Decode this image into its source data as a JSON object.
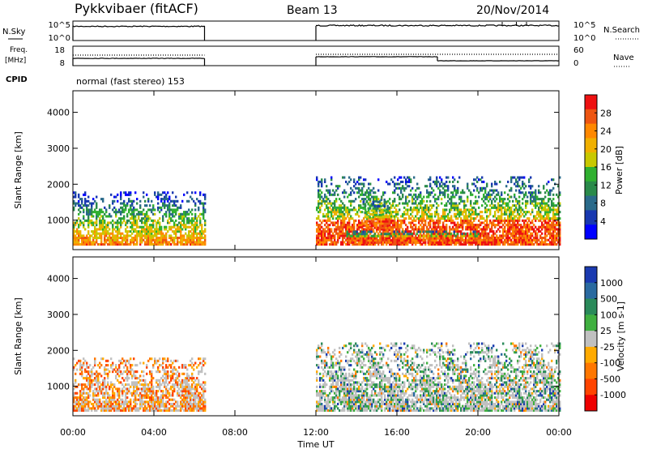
{
  "header": {
    "station": "Pykkvibaer (fitACF)",
    "beam": "Beam 13",
    "date": "20/Nov/2014",
    "mode": "normal (fast stereo) 153"
  },
  "side_labels": {
    "nsky": "N.Sky",
    "nsearch": "N.Search",
    "freq_line1": "Freq.",
    "freq_line2": "[MHz]",
    "nave": "Nave",
    "cpid": "CPID"
  },
  "noise_axis": {
    "left_ticks": [
      "10^5",
      "10^0"
    ],
    "right_ticks": [
      "10^5",
      "10^0"
    ]
  },
  "freq_axis": {
    "left_ticks": [
      "18",
      "8"
    ],
    "right_ticks": [
      "60",
      "0"
    ]
  },
  "x_axis": {
    "label": "Time UT",
    "ticks": [
      "00:00",
      "04:00",
      "08:00",
      "12:00",
      "16:00",
      "20:00",
      "00:00"
    ]
  },
  "chart_data": [
    {
      "type": "heatmap",
      "title": "",
      "xlabel": "Time UT",
      "ylabel": "Slant Range [km]",
      "x_range_hours": [
        0,
        24
      ],
      "ylim": [
        180,
        4600
      ],
      "y_ticks": [
        1000,
        2000,
        3000,
        4000
      ],
      "colorbar_label": "Power [dB]",
      "colorbar_ticks": [
        28,
        24,
        20,
        16,
        12,
        8,
        4
      ],
      "colors": [
        "#ee1111",
        "#ee5511",
        "#ff8800",
        "#f0b000",
        "#c8c800",
        "#30b030",
        "#2a8a4a",
        "#2a6a8a",
        "#1838b0",
        "#0000ff"
      ],
      "data_gaps_hours": [
        [
          6.5,
          12.0
        ]
      ],
      "echo_regions": [
        {
          "t_start": 0.0,
          "t_end": 6.5,
          "range_min": 300,
          "range_max": 1800,
          "peak_db": 22
        },
        {
          "t_start": 12.0,
          "t_end": 24.0,
          "range_min": 300,
          "range_max": 2200,
          "peak_db": 30
        },
        {
          "t_start": 14.3,
          "t_end": 15.6,
          "range_min": 700,
          "range_max": 1600,
          "peak_db": 30
        },
        {
          "t_start": 13.5,
          "t_end": 20.0,
          "range_min": 350,
          "range_max": 700,
          "peak_db": 30
        }
      ]
    },
    {
      "type": "heatmap",
      "title": "",
      "xlabel": "Time UT",
      "ylabel": "Slant Range [km]",
      "x_range_hours": [
        0,
        24
      ],
      "ylim": [
        180,
        4600
      ],
      "y_ticks": [
        1000,
        2000,
        3000,
        4000
      ],
      "colorbar_label": "Velocity [m s-1]",
      "colorbar_ticks": [
        1000,
        500,
        100,
        25,
        -25,
        -100,
        -500,
        -1000
      ],
      "colors": [
        "#1a3ab0",
        "#2a6aa0",
        "#2a8a5a",
        "#40b040",
        "#c0c0c0",
        "#ffaa00",
        "#ff7700",
        "#ff4400",
        "#ee0000"
      ],
      "data_gaps_hours": [
        [
          6.5,
          12.0
        ]
      ],
      "echo_regions": [
        {
          "t_start": 0.0,
          "t_end": 6.5,
          "range_min": 300,
          "range_max": 1800,
          "mean_velocity": -150
        },
        {
          "t_start": 12.0,
          "t_end": 24.0,
          "range_min": 300,
          "range_max": 2200,
          "mean_velocity": 0
        }
      ]
    }
  ]
}
